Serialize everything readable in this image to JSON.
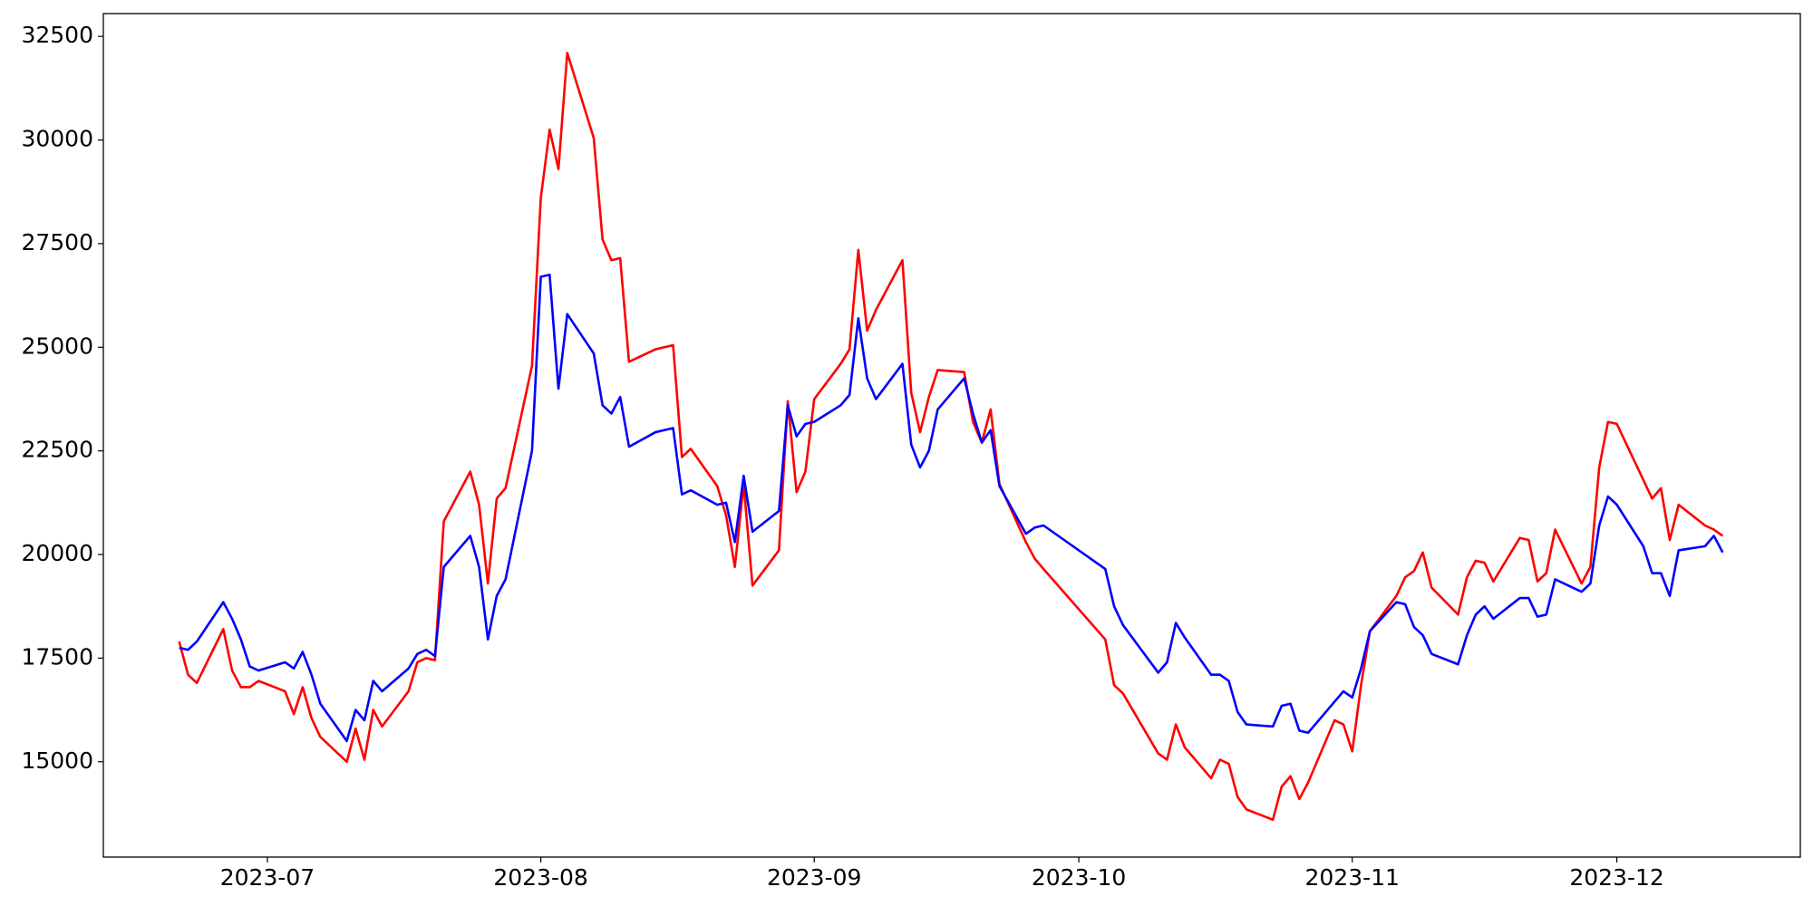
{
  "chart_data": {
    "type": "line",
    "x": [
      9,
      10,
      11,
      14,
      15,
      16,
      17,
      18,
      21,
      22,
      23,
      24,
      25,
      28,
      29,
      30,
      31,
      32,
      35,
      36,
      37,
      38,
      39,
      42,
      43,
      44,
      45,
      46,
      49,
      50,
      51,
      52,
      53,
      56,
      57,
      58,
      59,
      60,
      63,
      64,
      65,
      66,
      67,
      70,
      71,
      72,
      73,
      74,
      77,
      78,
      79,
      80,
      81,
      84,
      85,
      86,
      87,
      88,
      91,
      92,
      93,
      94,
      95,
      98,
      99,
      100,
      101,
      102,
      105,
      106,
      107,
      114,
      115,
      116,
      120,
      121,
      122,
      123,
      126,
      127,
      128,
      129,
      130,
      133,
      134,
      135,
      136,
      137,
      140,
      141,
      142,
      143,
      144,
      147,
      148,
      149,
      150,
      151,
      154,
      155,
      156,
      157,
      158,
      161,
      162,
      163,
      164,
      165,
      168,
      169,
      170,
      171,
      172,
      175,
      176,
      177,
      178,
      179,
      182,
      183,
      184
    ],
    "series": [
      {
        "color": "#ff0000",
        "values": [
          17900,
          17100,
          16900,
          18200,
          17200,
          16800,
          16800,
          16950,
          16700,
          16150,
          16800,
          16050,
          15600,
          15000,
          15800,
          15050,
          16250,
          15850,
          16700,
          17400,
          17500,
          17450,
          20800,
          22000,
          21200,
          19300,
          21350,
          21600,
          24550,
          28600,
          30250,
          29300,
          32100,
          30050,
          27600,
          27100,
          27150,
          24650,
          24950,
          25000,
          25050,
          22350,
          22550,
          21650,
          20950,
          19700,
          21700,
          19250,
          20100,
          23700,
          21500,
          22000,
          23750,
          24600,
          24950,
          27350,
          25400,
          25900,
          27100,
          23900,
          22950,
          23800,
          24450,
          24400,
          23200,
          22700,
          23500,
          21700,
          20300,
          19900,
          19650,
          17950,
          16850,
          16650,
          15200,
          15050,
          15900,
          15350,
          14600,
          15050,
          14950,
          14150,
          13850,
          13600,
          14400,
          14650,
          14100,
          14500,
          16000,
          15900,
          15250,
          16850,
          18150,
          19000,
          19450,
          19600,
          20050,
          19200,
          18550,
          19450,
          19850,
          19800,
          19350,
          20400,
          20350,
          19350,
          19550,
          20600,
          19300,
          19700,
          22100,
          23200,
          23150,
          21800,
          21350,
          21600,
          20350,
          21200,
          20700,
          20600,
          20450
        ]
      },
      {
        "color": "#0000ff",
        "values": [
          17750,
          17700,
          17900,
          18850,
          18450,
          17950,
          17300,
          17200,
          17400,
          17250,
          17650,
          17100,
          16400,
          15500,
          16250,
          16000,
          16950,
          16700,
          17250,
          17600,
          17700,
          17550,
          19700,
          20450,
          19700,
          17950,
          19000,
          19400,
          22500,
          26700,
          26750,
          24000,
          25800,
          24850,
          23600,
          23400,
          23800,
          22600,
          22950,
          23000,
          23050,
          21450,
          21550,
          21200,
          21250,
          20300,
          21900,
          20550,
          21050,
          23600,
          22850,
          23150,
          23200,
          23600,
          23850,
          25700,
          24250,
          23750,
          24600,
          22650,
          22100,
          22500,
          23500,
          24250,
          23400,
          22700,
          23000,
          21650,
          20500,
          20650,
          20700,
          19650,
          18750,
          18300,
          17150,
          17400,
          18350,
          18000,
          17100,
          17100,
          16950,
          16200,
          15900,
          15850,
          16350,
          16400,
          15750,
          15700,
          16450,
          16700,
          16550,
          17250,
          18150,
          18850,
          18800,
          18250,
          18050,
          17600,
          17350,
          18050,
          18550,
          18750,
          18450,
          18950,
          18950,
          18500,
          18550,
          19400,
          19100,
          19300,
          20700,
          21400,
          21200,
          20200,
          19550,
          19550,
          19000,
          20100,
          20200,
          20450,
          20050
        ]
      }
    ],
    "xlim": [
      0.4,
      192.8
    ],
    "ylim": [
      12700,
      33050
    ],
    "xticks": [
      {
        "value": 19,
        "label": "2023-07"
      },
      {
        "value": 50,
        "label": "2023-08"
      },
      {
        "value": 81,
        "label": "2023-09"
      },
      {
        "value": 111,
        "label": "2023-10"
      },
      {
        "value": 142,
        "label": "2023-11"
      },
      {
        "value": 172,
        "label": "2023-12"
      }
    ],
    "yticks": [
      15000,
      17500,
      20000,
      22500,
      25000,
      27500,
      30000,
      32500
    ]
  }
}
